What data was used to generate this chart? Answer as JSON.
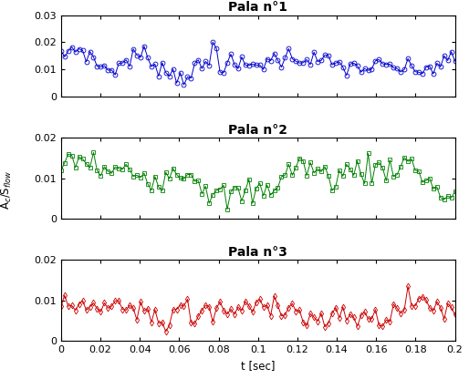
{
  "title1": "Pala n°1",
  "title2": "Pala n°2",
  "title3": "Pala n°3",
  "ylabel": "A$_c$/S$_{flow}$",
  "xlabel": "t [sec]",
  "color1": "#0000CD",
  "color2": "#008000",
  "color3": "#CC0000",
  "marker1": "o",
  "marker2": "s",
  "marker3": "d",
  "xlim": [
    0,
    0.2
  ],
  "ylim1": [
    0,
    0.03
  ],
  "ylim2": [
    0,
    0.02
  ],
  "ylim3": [
    0,
    0.02
  ],
  "yticks1": [
    0,
    0.01,
    0.02,
    0.03
  ],
  "yticks2": [
    0,
    0.01,
    0.02
  ],
  "yticks3": [
    0,
    0.01,
    0.02
  ],
  "xticks": [
    0,
    0.02,
    0.04,
    0.06,
    0.08,
    0.1,
    0.12,
    0.14,
    0.16,
    0.18,
    0.2
  ],
  "n_points": 110,
  "figsize": [
    5.14,
    4.16
  ],
  "dpi": 100,
  "markersize": 3.5,
  "linewidth": 0.7,
  "title_fontsize": 10,
  "label_fontsize": 8.5,
  "tick_fontsize": 8
}
